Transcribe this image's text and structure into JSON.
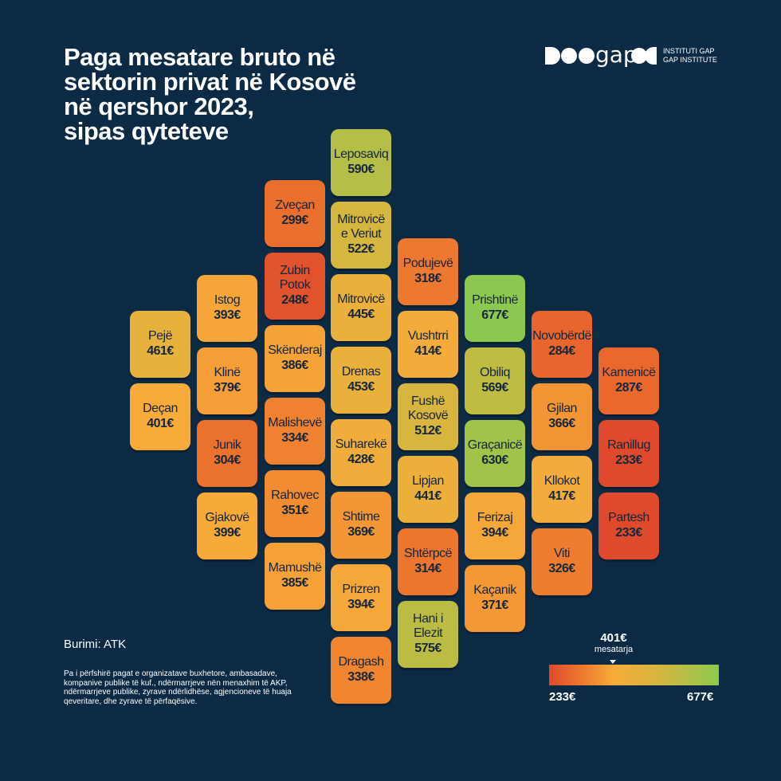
{
  "title_lines": [
    "Paga mesatare bruto në",
    "sektorin privat në Kosovë",
    "në qershor 2023,",
    "sipas qyteteve"
  ],
  "logo": {
    "mark": "gapo",
    "line1": "INSTITUTI GAP",
    "line2": "GAP INSTITUTE"
  },
  "source": "Burimi: ATK",
  "note": "Pa i përfshirë pagat e organizatave buxhetore, ambasadave, kompanive publike të kuf., ndërmarrjeve nën menaxhim të AKP, ndërmarrjeve publike, zyrave ndërlidhëse, agjencioneve të huaja qeveritare, dhe zyrave të përfaqësive.",
  "legend": {
    "avg_value": "401€",
    "avg_label": "mesatarja",
    "min_label": "233€",
    "max_label": "677€",
    "min": 233,
    "avg": 401,
    "max": 677,
    "colors": {
      "low": "#e04a2c",
      "mid_low": "#ef7f2f",
      "avg": "#f7ab3a",
      "mid_high": "#d6b63f",
      "high": "#8cc84f"
    }
  },
  "chart_data": {
    "type": "heatmap",
    "title": "Paga mesatare bruto në sektorin privat në Kosovë në qershor 2023, sipas qyteteve",
    "unit": "€",
    "grid_columns": [
      [
        {
          "name": "Pejë",
          "value": 461
        },
        {
          "name": "Deçan",
          "value": 401
        }
      ],
      [
        {
          "name": "Istog",
          "value": 393
        },
        {
          "name": "Klinë",
          "value": 379
        },
        {
          "name": "Junik",
          "value": 304
        },
        {
          "name": "Gjakovë",
          "value": 399
        }
      ],
      [
        {
          "name": "Zveçan",
          "value": 299
        },
        {
          "name": "Zubin Potok",
          "value": 248
        },
        {
          "name": "Skënderaj",
          "value": 386
        },
        {
          "name": "Malishevë",
          "value": 334
        },
        {
          "name": "Rahovec",
          "value": 351
        },
        {
          "name": "Mamushë",
          "value": 385
        }
      ],
      [
        {
          "name": "Leposaviq",
          "value": 590
        },
        {
          "name": "Mitrovicë e Veriut",
          "value": 522
        },
        {
          "name": "Mitrovicë",
          "value": 445
        },
        {
          "name": "Drenas",
          "value": 453
        },
        {
          "name": "Suharekë",
          "value": 428
        },
        {
          "name": "Shtime",
          "value": 369
        },
        {
          "name": "Prizren",
          "value": 394
        },
        {
          "name": "Dragash",
          "value": 338
        }
      ],
      [
        {
          "name": "Podujevë",
          "value": 318
        },
        {
          "name": "Vushtrri",
          "value": 414
        },
        {
          "name": "Fushë Kosovë",
          "value": 512
        },
        {
          "name": "Lipjan",
          "value": 441
        },
        {
          "name": "Shtërpcë",
          "value": 314
        },
        {
          "name": "Hani i Elezit",
          "value": 575
        }
      ],
      [
        {
          "name": "Prishtinë",
          "value": 677
        },
        {
          "name": "Obiliq",
          "value": 569
        },
        {
          "name": "Graçanicë",
          "value": 630
        },
        {
          "name": "Ferizaj",
          "value": 394
        },
        {
          "name": "Kaçanik",
          "value": 371
        }
      ],
      [
        {
          "name": "Novobërdë",
          "value": 284
        },
        {
          "name": "Gjilan",
          "value": 366
        },
        {
          "name": "Kllokot",
          "value": 417
        },
        {
          "name": "Viti",
          "value": 326
        }
      ],
      [
        {
          "name": "Kamenicë",
          "value": 287
        },
        {
          "name": "Ranillug",
          "value": 233
        },
        {
          "name": "Partesh",
          "value": 233
        }
      ]
    ]
  }
}
